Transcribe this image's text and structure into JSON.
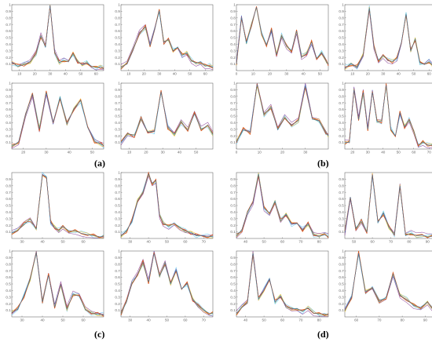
{
  "colors": {
    "axis": "#555555",
    "series": [
      "#1f77b4",
      "#d95319",
      "#edb120",
      "#7e2f8e",
      "#4dbeee",
      "#77ac30",
      "#a2142f"
    ]
  },
  "panel_labels": [
    "(a)",
    "(b)",
    "(c)",
    "(d)"
  ],
  "chart_data": [
    {
      "type": "line",
      "panel": "(a)",
      "xticks": [
        "10",
        "20",
        "30",
        "40",
        "50",
        "60"
      ],
      "yticks": [
        "0.1",
        "0.2",
        "0.3",
        "0.4",
        "0.5",
        "0.6",
        "0.7",
        "0.8",
        "0.9",
        "1"
      ],
      "xlim": [
        5,
        65
      ],
      "ylim": [
        0,
        1
      ],
      "x": [
        5,
        9,
        13,
        17,
        21,
        24,
        27,
        30,
        33,
        36,
        39,
        42,
        45,
        48,
        51,
        54,
        57,
        60,
        63,
        65
      ],
      "series": [
        {
          "values": [
            0.12,
            0.07,
            0.09,
            0.13,
            0.27,
            0.53,
            0.35,
            0.99,
            0.28,
            0.12,
            0.16,
            0.13,
            0.26,
            0.14,
            0.09,
            0.12,
            0.07,
            0.04,
            0.06,
            0.03
          ]
        }
      ]
    },
    {
      "type": "line",
      "panel": "(a)",
      "xticks": [
        "10",
        "20",
        "30",
        "40",
        "50",
        "60"
      ],
      "yticks": [
        "0.1",
        "0.2",
        "0.3",
        "0.4",
        "0.5",
        "0.6",
        "0.7",
        "0.8",
        "0.9",
        "1"
      ],
      "xlim": [
        5,
        65
      ],
      "ylim": [
        0,
        1
      ],
      "x": [
        5,
        9,
        13,
        17,
        21,
        24,
        27,
        30,
        33,
        36,
        39,
        42,
        45,
        48,
        51,
        54,
        57,
        60,
        63,
        65
      ],
      "series": [
        {
          "values": [
            0.05,
            0.1,
            0.32,
            0.57,
            0.66,
            0.38,
            0.62,
            0.91,
            0.43,
            0.47,
            0.3,
            0.36,
            0.23,
            0.27,
            0.15,
            0.11,
            0.14,
            0.07,
            0.07,
            0.05
          ]
        }
      ]
    },
    {
      "type": "line",
      "panel": "(b)",
      "xticks": [
        "0",
        "10",
        "20",
        "30",
        "40",
        "50"
      ],
      "yticks": [
        "0.1",
        "0.2",
        "0.3",
        "0.4",
        "0.5",
        "0.6",
        "0.7",
        "0.8",
        "0.9",
        "1"
      ],
      "xlim": [
        0,
        55
      ],
      "ylim": [
        0,
        1
      ],
      "x": [
        0,
        3,
        6,
        9,
        12,
        15,
        18,
        21,
        24,
        27,
        30,
        33,
        36,
        39,
        42,
        45,
        48,
        51,
        54,
        55
      ],
      "series": [
        {
          "values": [
            0.1,
            0.8,
            0.42,
            0.7,
            0.96,
            0.56,
            0.39,
            0.62,
            0.24,
            0.53,
            0.37,
            0.31,
            0.6,
            0.21,
            0.26,
            0.43,
            0.19,
            0.27,
            0.13,
            0.1
          ]
        }
      ]
    },
    {
      "type": "line",
      "panel": "(b)",
      "xticks": [
        "10",
        "20",
        "30",
        "40",
        "50",
        "60"
      ],
      "yticks": [
        "0.1",
        "0.2",
        "0.3",
        "0.4",
        "0.5",
        "0.6",
        "0.7",
        "0.8",
        "0.9",
        "1"
      ],
      "xlim": [
        5,
        65
      ],
      "ylim": [
        0,
        1
      ],
      "x": [
        5,
        9,
        13,
        17,
        21,
        24,
        27,
        30,
        33,
        36,
        39,
        42,
        45,
        48,
        51,
        54,
        57,
        60,
        63,
        65
      ],
      "series": [
        {
          "values": [
            0.04,
            0.1,
            0.06,
            0.24,
            0.95,
            0.36,
            0.16,
            0.23,
            0.16,
            0.14,
            0.18,
            0.44,
            0.86,
            0.3,
            0.48,
            0.12,
            0.09,
            0.14,
            0.06,
            0.05
          ]
        }
      ]
    },
    {
      "type": "line",
      "panel": "(a)",
      "xticks": [
        "20",
        "30",
        "40",
        "50"
      ],
      "yticks": [
        "0.1",
        "0.2",
        "0.3",
        "0.4",
        "0.5",
        "0.6",
        "0.7",
        "0.8",
        "0.9",
        "1"
      ],
      "xlim": [
        15,
        55
      ],
      "ylim": [
        0,
        1
      ],
      "x": [
        15,
        18,
        21,
        24,
        27,
        30,
        33,
        36,
        39,
        42,
        45,
        48,
        51,
        54,
        55
      ],
      "series": [
        {
          "values": [
            0.04,
            0.11,
            0.53,
            0.83,
            0.3,
            0.86,
            0.41,
            0.78,
            0.38,
            0.61,
            0.74,
            0.33,
            0.12,
            0.07,
            0.05
          ]
        }
      ]
    },
    {
      "type": "line",
      "panel": "(a)",
      "xticks": [
        "10",
        "20",
        "30",
        "40",
        "50"
      ],
      "yticks": [
        "0.1",
        "0.2",
        "0.3",
        "0.4",
        "0.5",
        "0.6",
        "0.7",
        "0.8",
        "0.9",
        "1"
      ],
      "xlim": [
        5,
        60
      ],
      "ylim": [
        0,
        1
      ],
      "x": [
        5,
        9,
        13,
        17,
        21,
        25,
        29,
        33,
        37,
        41,
        45,
        49,
        53,
        57,
        60
      ],
      "series": [
        {
          "values": [
            0.1,
            0.24,
            0.2,
            0.46,
            0.26,
            0.27,
            0.87,
            0.33,
            0.22,
            0.41,
            0.29,
            0.53,
            0.3,
            0.36,
            0.22
          ]
        }
      ]
    },
    {
      "type": "line",
      "panel": "(b)",
      "xticks": [
        "0",
        "10",
        "20",
        "30"
      ],
      "yticks": [
        "0.1",
        "0.2",
        "0.3",
        "0.4",
        "0.5",
        "0.6",
        "0.7",
        "0.8",
        "0.9",
        "1"
      ],
      "xlim": [
        0,
        40
      ],
      "ylim": [
        0,
        1
      ],
      "x": [
        0,
        3,
        6,
        9,
        12,
        15,
        18,
        21,
        24,
        27,
        30,
        33,
        36,
        39,
        40
      ],
      "series": [
        {
          "values": [
            0.11,
            0.3,
            0.25,
            0.98,
            0.52,
            0.64,
            0.29,
            0.48,
            0.36,
            0.43,
            0.96,
            0.45,
            0.43,
            0.25,
            0.2
          ]
        }
      ]
    },
    {
      "type": "line",
      "panel": "(b)",
      "xticks": [
        "20",
        "30",
        "40",
        "50",
        "60",
        "70"
      ],
      "yticks": [
        "0.1",
        "0.2",
        "0.3",
        "0.4",
        "0.5",
        "0.6",
        "0.7",
        "0.8",
        "0.9",
        "1"
      ],
      "xlim": [
        15,
        75
      ],
      "ylim": [
        0,
        1
      ],
      "x": [
        15,
        18,
        21,
        24,
        27,
        30,
        33,
        36,
        39,
        42,
        45,
        48,
        51,
        54,
        57,
        60,
        63,
        66,
        69,
        72,
        75
      ],
      "series": [
        {
          "values": [
            0.1,
            0.1,
            0.9,
            0.45,
            0.86,
            0.3,
            0.86,
            0.42,
            0.42,
            0.97,
            0.3,
            0.2,
            0.55,
            0.34,
            0.44,
            0.27,
            0.07,
            0.1,
            0.06,
            0.06,
            0.05
          ]
        }
      ]
    },
    {
      "type": "line",
      "panel": "(c)",
      "xticks": [
        "30",
        "40",
        "50",
        "60"
      ],
      "yticks": [
        "0.1",
        "0.2",
        "0.3",
        "0.4",
        "0.5",
        "0.6",
        "0.7",
        "0.8",
        "0.9"
      ],
      "xlim": [
        25,
        70
      ],
      "ylim": [
        0,
        1
      ],
      "x": [
        25,
        28,
        31,
        34,
        37,
        40,
        42,
        44,
        46,
        48,
        50,
        53,
        56,
        59,
        62,
        65,
        68,
        70
      ],
      "series": [
        {
          "values": [
            0.08,
            0.12,
            0.22,
            0.29,
            0.14,
            0.97,
            0.93,
            0.25,
            0.17,
            0.12,
            0.18,
            0.12,
            0.11,
            0.08,
            0.06,
            0.04,
            0.03,
            0.03
          ]
        }
      ]
    },
    {
      "type": "line",
      "panel": "(c)",
      "xticks": [
        "30",
        "40",
        "50",
        "60",
        "70"
      ],
      "yticks": [
        "0.1",
        "0.2",
        "0.3",
        "0.4",
        "0.5",
        "0.6",
        "0.7",
        "0.8",
        "0.9",
        "1"
      ],
      "xlim": [
        25,
        75
      ],
      "ylim": [
        0,
        1
      ],
      "x": [
        25,
        28,
        31,
        34,
        37,
        40,
        42,
        44,
        46,
        48,
        51,
        54,
        57,
        60,
        63,
        66,
        69,
        72,
        75
      ],
      "series": [
        {
          "values": [
            0.04,
            0.11,
            0.27,
            0.57,
            0.7,
            0.98,
            0.84,
            0.88,
            0.35,
            0.23,
            0.18,
            0.24,
            0.16,
            0.11,
            0.09,
            0.05,
            0.04,
            0.03,
            0.03
          ]
        }
      ]
    },
    {
      "type": "line",
      "panel": "(d)",
      "xticks": [
        "40",
        "50",
        "60",
        "70",
        "80"
      ],
      "yticks": [
        "0.1",
        "0.2",
        "0.3",
        "0.4",
        "0.5",
        "0.6",
        "0.7",
        "0.8",
        "0.9"
      ],
      "xlim": [
        35,
        85
      ],
      "ylim": [
        0,
        1
      ],
      "x": [
        35,
        38,
        41,
        44,
        47,
        50,
        53,
        56,
        59,
        62,
        65,
        68,
        71,
        74,
        77,
        80,
        83,
        85
      ],
      "series": [
        {
          "values": [
            0.04,
            0.13,
            0.4,
            0.55,
            0.98,
            0.46,
            0.39,
            0.56,
            0.27,
            0.37,
            0.22,
            0.23,
            0.13,
            0.22,
            0.06,
            0.04,
            0.05,
            0.03
          ]
        }
      ]
    },
    {
      "type": "line",
      "panel": "(d)",
      "xticks": [
        "50",
        "60",
        "70",
        "80",
        "90"
      ],
      "yticks": [
        "0.1",
        "0.2",
        "0.3",
        "0.4",
        "0.5",
        "0.6",
        "0.7",
        "0.8",
        "0.9"
      ],
      "xlim": [
        45,
        95
      ],
      "ylim": [
        0,
        1
      ],
      "x": [
        45,
        48,
        51,
        54,
        57,
        60,
        63,
        66,
        69,
        72,
        75,
        78,
        81,
        84,
        87,
        90,
        93,
        95
      ],
      "series": [
        {
          "values": [
            0.09,
            0.63,
            0.15,
            0.26,
            0.1,
            0.97,
            0.25,
            0.38,
            0.17,
            0.06,
            0.8,
            0.04,
            0.08,
            0.04,
            0.05,
            0.03,
            0.03,
            0.03
          ]
        }
      ]
    },
    {
      "type": "line",
      "panel": "(c)",
      "xticks": [
        "30",
        "40",
        "50",
        "60"
      ],
      "yticks": [
        "0.1",
        "0.2",
        "0.3",
        "0.4",
        "0.5",
        "0.6",
        "0.7",
        "0.8",
        "0.9",
        "1"
      ],
      "xlim": [
        25,
        70
      ],
      "ylim": [
        0,
        1
      ],
      "x": [
        25,
        28,
        31,
        34,
        37,
        40,
        43,
        46,
        49,
        52,
        55,
        58,
        61,
        64,
        67,
        70
      ],
      "series": [
        {
          "values": [
            0.06,
            0.13,
            0.32,
            0.57,
            0.98,
            0.23,
            0.63,
            0.15,
            0.49,
            0.12,
            0.35,
            0.31,
            0.12,
            0.06,
            0.04,
            0.03
          ]
        }
      ]
    },
    {
      "type": "line",
      "panel": "(c)",
      "xticks": [
        "30",
        "40",
        "50",
        "60",
        "70"
      ],
      "yticks": [
        "0.1",
        "0.2",
        "0.3",
        "0.4",
        "0.5",
        "0.6",
        "0.7",
        "0.8",
        "0.9",
        "1"
      ],
      "xlim": [
        25,
        75
      ],
      "ylim": [
        0,
        1
      ],
      "x": [
        25,
        28,
        31,
        34,
        37,
        40,
        43,
        46,
        49,
        52,
        55,
        58,
        61,
        64,
        67,
        70,
        73,
        75
      ],
      "series": [
        {
          "values": [
            0.05,
            0.23,
            0.51,
            0.64,
            0.83,
            0.53,
            0.96,
            0.62,
            0.82,
            0.5,
            0.71,
            0.42,
            0.51,
            0.27,
            0.17,
            0.1,
            0.06,
            0.05
          ]
        }
      ]
    },
    {
      "type": "line",
      "panel": "(d)",
      "xticks": [
        "40",
        "50",
        "60",
        "70",
        "80"
      ],
      "yticks": [
        "0.1",
        "0.2",
        "0.3",
        "0.4",
        "0.5",
        "0.6",
        "0.7",
        "0.8",
        "0.9"
      ],
      "xlim": [
        35,
        85
      ],
      "ylim": [
        0,
        1
      ],
      "x": [
        35,
        38,
        41,
        44,
        47,
        50,
        53,
        56,
        59,
        62,
        65,
        68,
        71,
        74,
        77,
        80,
        83,
        85
      ],
      "series": [
        {
          "values": [
            0.05,
            0.14,
            0.22,
            0.97,
            0.27,
            0.41,
            0.57,
            0.23,
            0.32,
            0.16,
            0.12,
            0.13,
            0.08,
            0.14,
            0.06,
            0.04,
            0.05,
            0.03
          ]
        }
      ]
    },
    {
      "type": "line",
      "panel": "(d)",
      "xticks": [
        "60",
        "70",
        "80",
        "90"
      ],
      "yticks": [
        "0.1",
        "0.2",
        "0.3",
        "0.4",
        "0.5",
        "0.6",
        "0.7",
        "0.8",
        "0.9",
        "1"
      ],
      "xlim": [
        55,
        95
      ],
      "ylim": [
        0,
        1
      ],
      "x": [
        55,
        58,
        61,
        64,
        67,
        70,
        73,
        76,
        79,
        82,
        85,
        88,
        91,
        94,
        95
      ],
      "series": [
        {
          "values": [
            0.1,
            0.3,
            0.97,
            0.38,
            0.44,
            0.23,
            0.3,
            0.65,
            0.33,
            0.26,
            0.17,
            0.15,
            0.22,
            0.08,
            0.06
          ]
        }
      ]
    }
  ]
}
